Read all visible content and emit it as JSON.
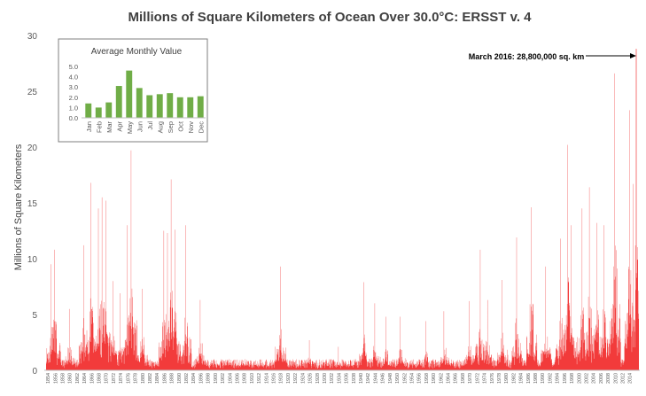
{
  "chart_data": [
    {
      "type": "bar",
      "title": "Millions of Square Kilometers of Ocean Over 30.0°C: ERSST v. 4",
      "ylabel": "Millions of Square Kilometers",
      "xlabel": "",
      "ylim": [
        0,
        30
      ],
      "yticks": [
        "0",
        "5",
        "10",
        "15",
        "20",
        "25",
        "30"
      ],
      "x_start_year": 1854,
      "x_end_year": 2016,
      "grid": "none",
      "bar_color": "#f23b3b",
      "annotation": {
        "text": "March 2016: 28,800,000 sq. km",
        "year": 2016,
        "month": "Mar",
        "value": 28.8
      },
      "peaks": [
        {
          "year": 1855,
          "value": 9.5
        },
        {
          "year": 1856,
          "value": 10.8
        },
        {
          "year": 1860,
          "value": 5.5
        },
        {
          "year": 1864,
          "value": 11.2
        },
        {
          "year": 1866,
          "value": 16.8
        },
        {
          "year": 1868,
          "value": 14.5
        },
        {
          "year": 1869,
          "value": 15.5
        },
        {
          "year": 1870,
          "value": 15.2
        },
        {
          "year": 1872,
          "value": 8.0
        },
        {
          "year": 1874,
          "value": 6.9
        },
        {
          "year": 1876,
          "value": 13.0
        },
        {
          "year": 1877,
          "value": 19.7
        },
        {
          "year": 1880,
          "value": 7.3
        },
        {
          "year": 1886,
          "value": 12.5
        },
        {
          "year": 1887,
          "value": 12.3
        },
        {
          "year": 1888,
          "value": 17.1
        },
        {
          "year": 1889,
          "value": 12.6
        },
        {
          "year": 1892,
          "value": 13.0
        },
        {
          "year": 1896,
          "value": 6.3
        },
        {
          "year": 1904,
          "value": 1.0
        },
        {
          "year": 1918,
          "value": 9.3
        },
        {
          "year": 1926,
          "value": 2.7
        },
        {
          "year": 1934,
          "value": 2.1
        },
        {
          "year": 1941,
          "value": 7.9
        },
        {
          "year": 1944,
          "value": 6.0
        },
        {
          "year": 1947,
          "value": 4.8
        },
        {
          "year": 1951,
          "value": 4.8
        },
        {
          "year": 1958,
          "value": 4.4
        },
        {
          "year": 1963,
          "value": 5.3
        },
        {
          "year": 1970,
          "value": 6.2
        },
        {
          "year": 1973,
          "value": 10.8
        },
        {
          "year": 1975,
          "value": 6.3
        },
        {
          "year": 1979,
          "value": 8.1
        },
        {
          "year": 1983,
          "value": 11.9
        },
        {
          "year": 1987,
          "value": 14.6
        },
        {
          "year": 1991,
          "value": 9.3
        },
        {
          "year": 1995,
          "value": 11.8
        },
        {
          "year": 1997,
          "value": 20.2
        },
        {
          "year": 1998,
          "value": 13.0
        },
        {
          "year": 2001,
          "value": 14.5
        },
        {
          "year": 2003,
          "value": 16.4
        },
        {
          "year": 2005,
          "value": 13.2
        },
        {
          "year": 2007,
          "value": 13.0
        },
        {
          "year": 2010,
          "value": 26.6
        },
        {
          "year": 2014,
          "value": 23.3
        },
        {
          "year": 2015,
          "value": 16.7
        },
        {
          "year": 2016,
          "value": 28.8
        }
      ]
    },
    {
      "type": "bar",
      "title": "Average Monthly Value",
      "categories": [
        "Jan",
        "Feb",
        "Mar",
        "Apr",
        "May",
        "Jun",
        "Jul",
        "Aug",
        "Sep",
        "Oct",
        "Nov",
        "Dec"
      ],
      "values": [
        1.4,
        1.0,
        1.5,
        3.1,
        4.6,
        2.9,
        2.2,
        2.3,
        2.4,
        2.0,
        2.0,
        2.1
      ],
      "ylim": [
        0,
        5
      ],
      "yticks": [
        "0.0",
        "1.0",
        "2.0",
        "3.0",
        "4.0",
        "5.0"
      ],
      "bar_color": "#70ad47",
      "grid": "none"
    }
  ]
}
